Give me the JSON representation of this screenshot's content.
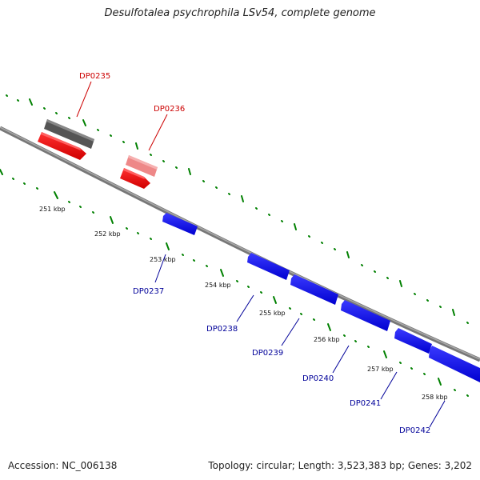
{
  "title": "Desulfotalea psychrophila LSv54, complete genome",
  "footer": {
    "accession": "Accession: NC_006138",
    "topology": "Topology: circular; Length: 3,523,383 bp; Genes: 3,202"
  },
  "colors": {
    "forward_strand": "#ff0000",
    "forward_strand_light": "#f08080",
    "reverse_strand": "#0000ff",
    "neighbor_gene": "#666666",
    "backbone": "#888888",
    "ticks": "#008000",
    "label_red": "#cc0000",
    "label_blue": "#000099"
  },
  "scale_labels": [
    "251 kbp",
    "252 kbp",
    "253 kbp",
    "254 kbp",
    "255 kbp",
    "256 kbp",
    "257 kbp",
    "258 kbp"
  ],
  "genes": [
    {
      "name": "DP0235",
      "strand": "forward",
      "color": "#cc0000"
    },
    {
      "name": "DP0236",
      "strand": "forward",
      "color": "#cc0000"
    },
    {
      "name": "DP0237",
      "strand": "reverse",
      "color": "#000099"
    },
    {
      "name": "DP0238",
      "strand": "reverse",
      "color": "#000099"
    },
    {
      "name": "DP0239",
      "strand": "reverse",
      "color": "#000099"
    },
    {
      "name": "DP0240",
      "strand": "reverse",
      "color": "#000099"
    },
    {
      "name": "DP0241",
      "strand": "reverse",
      "color": "#000099"
    },
    {
      "name": "DP0242",
      "strand": "reverse",
      "color": "#000099"
    }
  ]
}
